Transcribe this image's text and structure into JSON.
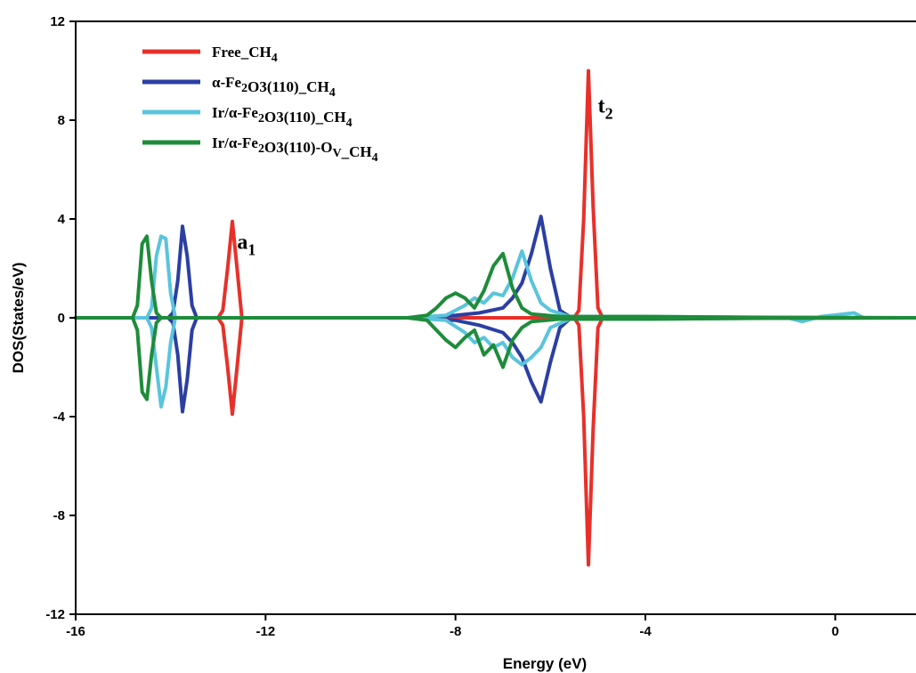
{
  "chart_data": {
    "type": "line",
    "xlabel": "Energy (eV)",
    "ylabel": "DOS(States/eV)",
    "xlim": [
      -16,
      1.7
    ],
    "ylim": [
      -12,
      12
    ],
    "x_ticks": [
      -16,
      -12,
      -8,
      -4,
      0
    ],
    "y_ticks": [
      12,
      8,
      4,
      0,
      -4,
      -8,
      -12
    ],
    "grid": false,
    "legend_position": "top-left",
    "series": [
      {
        "name": "Free_CH4",
        "color": "#e8302a",
        "x": [
          -16,
          -13.0,
          -12.9,
          -12.8,
          -12.7,
          -12.6,
          -12.5,
          -5.5,
          -5.4,
          -5.3,
          -5.2,
          -5.1,
          -5.0,
          -4.9,
          1.7
        ],
        "y_up": [
          0,
          0,
          0.3,
          2.0,
          3.9,
          2.0,
          0,
          0,
          0.3,
          4.0,
          10.0,
          4.5,
          0.4,
          0,
          0
        ],
        "y_down": [
          0,
          0,
          -0.3,
          -2.0,
          -3.9,
          -2.0,
          0,
          0,
          -0.3,
          -4.0,
          -10.0,
          -4.5,
          -0.4,
          0,
          0
        ]
      },
      {
        "name": "α-Fe2O3(110)_CH4",
        "color": "#2b3fa3",
        "x": [
          -16,
          -14.05,
          -13.95,
          -13.85,
          -13.75,
          -13.65,
          -13.55,
          -13.45,
          -9.0,
          -8.0,
          -7.5,
          -7.0,
          -6.8,
          -6.6,
          -6.4,
          -6.2,
          -6.0,
          -5.8,
          -5.6,
          -4.0,
          1.7
        ],
        "y_up": [
          0,
          0,
          0.2,
          1.5,
          3.7,
          2.5,
          0.5,
          0,
          0,
          0.1,
          0.2,
          0.4,
          0.8,
          1.4,
          2.6,
          4.1,
          2.0,
          0.3,
          0.05,
          0.02,
          0
        ],
        "y_down": [
          0,
          0,
          -0.2,
          -1.5,
          -3.8,
          -2.5,
          -0.5,
          0,
          0,
          -0.1,
          -0.3,
          -0.6,
          -1.0,
          -1.6,
          -2.6,
          -3.4,
          -1.8,
          -0.4,
          -0.05,
          -0.02,
          0
        ]
      },
      {
        "name": "Ir/α-Fe2O3(110)_CH4",
        "color": "#5ac4dc",
        "x": [
          -16,
          -14.5,
          -14.4,
          -14.3,
          -14.2,
          -14.1,
          -14.0,
          -13.9,
          -9.0,
          -8.2,
          -7.8,
          -7.6,
          -7.4,
          -7.2,
          -7.0,
          -6.8,
          -6.6,
          -6.4,
          -6.2,
          -6.0,
          -5.6,
          -4.0,
          -2.0,
          -1.0,
          -0.7,
          -0.3,
          0.4,
          0.6,
          1.7
        ],
        "y_up": [
          0,
          0,
          0.4,
          2.5,
          3.3,
          3.2,
          1.0,
          0,
          0,
          0.1,
          0.5,
          0.8,
          0.6,
          1.0,
          0.9,
          1.6,
          2.7,
          1.5,
          0.6,
          0.3,
          0.05,
          0.05,
          0.02,
          0,
          -0.15,
          0.05,
          0.2,
          0,
          0
        ],
        "y_down": [
          0,
          0,
          -0.4,
          -2.0,
          -3.6,
          -2.8,
          -1.0,
          0,
          0,
          -0.1,
          -0.6,
          -1.0,
          -0.8,
          -1.2,
          -1.0,
          -1.6,
          -1.9,
          -1.6,
          -1.2,
          -0.4,
          -0.05,
          -0.05,
          -0.02,
          0,
          0,
          0,
          0,
          0,
          0
        ]
      },
      {
        "name": "Ir/α-Fe2O3(110)-OV_CH4",
        "color": "#1e8c3a",
        "x": [
          -16,
          -14.8,
          -14.7,
          -14.6,
          -14.5,
          -14.4,
          -14.3,
          -14.2,
          -9.0,
          -8.6,
          -8.4,
          -8.2,
          -8.0,
          -7.8,
          -7.6,
          -7.4,
          -7.2,
          -7.0,
          -6.8,
          -6.6,
          -6.4,
          -5.8,
          -4.0,
          -2.0,
          1.7
        ],
        "y_up": [
          0,
          0,
          0.5,
          3.0,
          3.3,
          1.5,
          0.2,
          0,
          0,
          0.1,
          0.4,
          0.8,
          1.0,
          0.8,
          0.4,
          1.1,
          2.1,
          2.6,
          1.2,
          0.4,
          0.15,
          0.05,
          0.05,
          0.02,
          0
        ],
        "y_down": [
          0,
          0,
          -0.5,
          -3.0,
          -3.3,
          -1.5,
          -0.2,
          0,
          0,
          -0.1,
          -0.5,
          -0.9,
          -1.2,
          -0.8,
          -0.5,
          -1.5,
          -1.1,
          -2.0,
          -0.9,
          -0.4,
          -0.15,
          -0.05,
          -0.05,
          -0.02,
          0
        ]
      }
    ],
    "annotations": [
      {
        "text": "a",
        "sub": "1",
        "x": -12.6,
        "y": 2.8
      },
      {
        "text": "t",
        "sub": "2",
        "x": -5.0,
        "y": 8.3
      }
    ]
  }
}
